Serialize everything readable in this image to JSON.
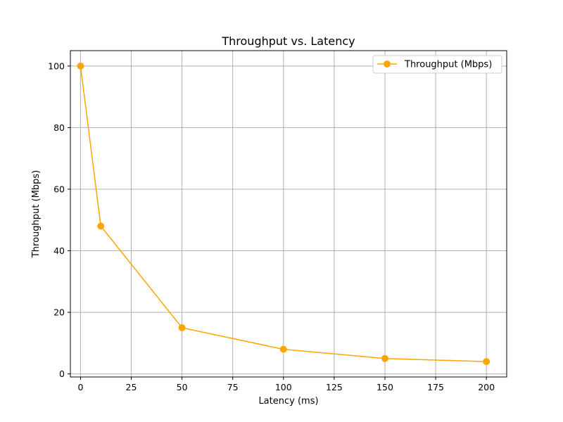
{
  "chart_data": {
    "type": "line",
    "title": "Throughput vs. Latency",
    "xlabel": "Latency (ms)",
    "ylabel": "Throughput (Mbps)",
    "xlim": [
      -5,
      210
    ],
    "ylim": [
      -1,
      105
    ],
    "xticks": [
      0,
      25,
      50,
      75,
      100,
      125,
      150,
      175,
      200
    ],
    "yticks": [
      0,
      20,
      40,
      60,
      80,
      100
    ],
    "grid": true,
    "legend_position": "top-right",
    "series": [
      {
        "name": "Throughput (Mbps)",
        "color": "#ffa500",
        "marker": "circle",
        "x": [
          0,
          10,
          50,
          100,
          150,
          200
        ],
        "y": [
          100,
          48,
          15,
          8,
          5,
          4
        ]
      }
    ]
  }
}
